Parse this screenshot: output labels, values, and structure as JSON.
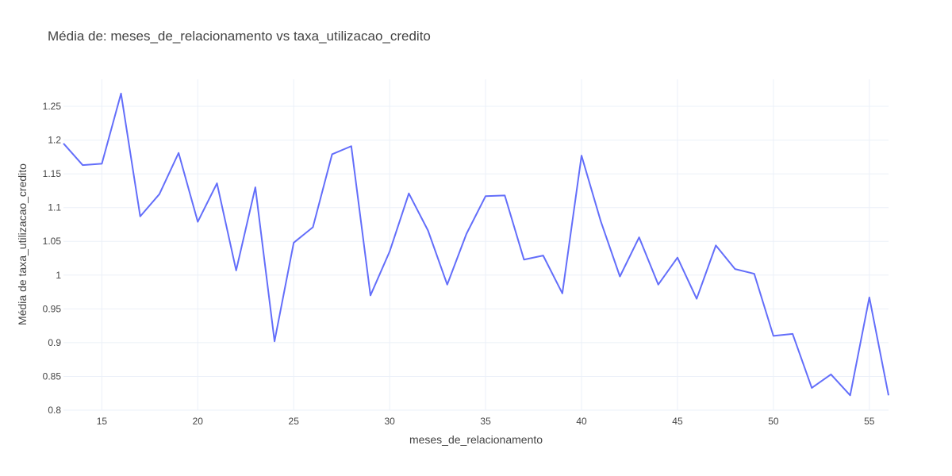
{
  "chart_data": {
    "type": "line",
    "title": "Média de: meses_de_relacionamento vs taxa_utilizacao_credito",
    "xlabel": "meses_de_relacionamento",
    "ylabel": "Média de taxa_utilizacao_credito",
    "xlim": [
      13,
      56
    ],
    "ylim": [
      0.8,
      1.29
    ],
    "xticks": [
      15,
      20,
      25,
      30,
      35,
      40,
      45,
      50,
      55
    ],
    "yticks": [
      0.8,
      0.85,
      0.9,
      0.95,
      1,
      1.05,
      1.1,
      1.15,
      1.2,
      1.25
    ],
    "ytick_labels": [
      "0.8",
      "0.85",
      "0.9",
      "0.95",
      "1",
      "1.05",
      "1.1",
      "1.15",
      "1.2",
      "1.25"
    ],
    "grid": true,
    "line_color": "#636efa",
    "series": [
      {
        "x": [
          13,
          14,
          15,
          16,
          17,
          18,
          19,
          20,
          21,
          22,
          23,
          24,
          25,
          26,
          27,
          28,
          29,
          30,
          31,
          32,
          33,
          34,
          35,
          36,
          37,
          38,
          39,
          40,
          41,
          42,
          43,
          44,
          45,
          46,
          47,
          48,
          49,
          50,
          51,
          52,
          53,
          54,
          55,
          56
        ],
        "values": [
          1.195,
          1.163,
          1.165,
          1.269,
          1.087,
          1.12,
          1.181,
          1.079,
          1.136,
          1.007,
          1.13,
          0.902,
          1.048,
          1.071,
          1.179,
          1.191,
          0.97,
          1.035,
          1.121,
          1.066,
          0.986,
          1.061,
          1.117,
          1.118,
          1.023,
          1.029,
          0.973,
          1.177,
          1.08,
          0.998,
          1.056,
          0.986,
          1.026,
          0.965,
          1.044,
          1.009,
          1.002,
          0.91,
          0.913,
          0.833,
          0.853,
          0.822,
          0.967,
          0.822
        ]
      }
    ]
  }
}
